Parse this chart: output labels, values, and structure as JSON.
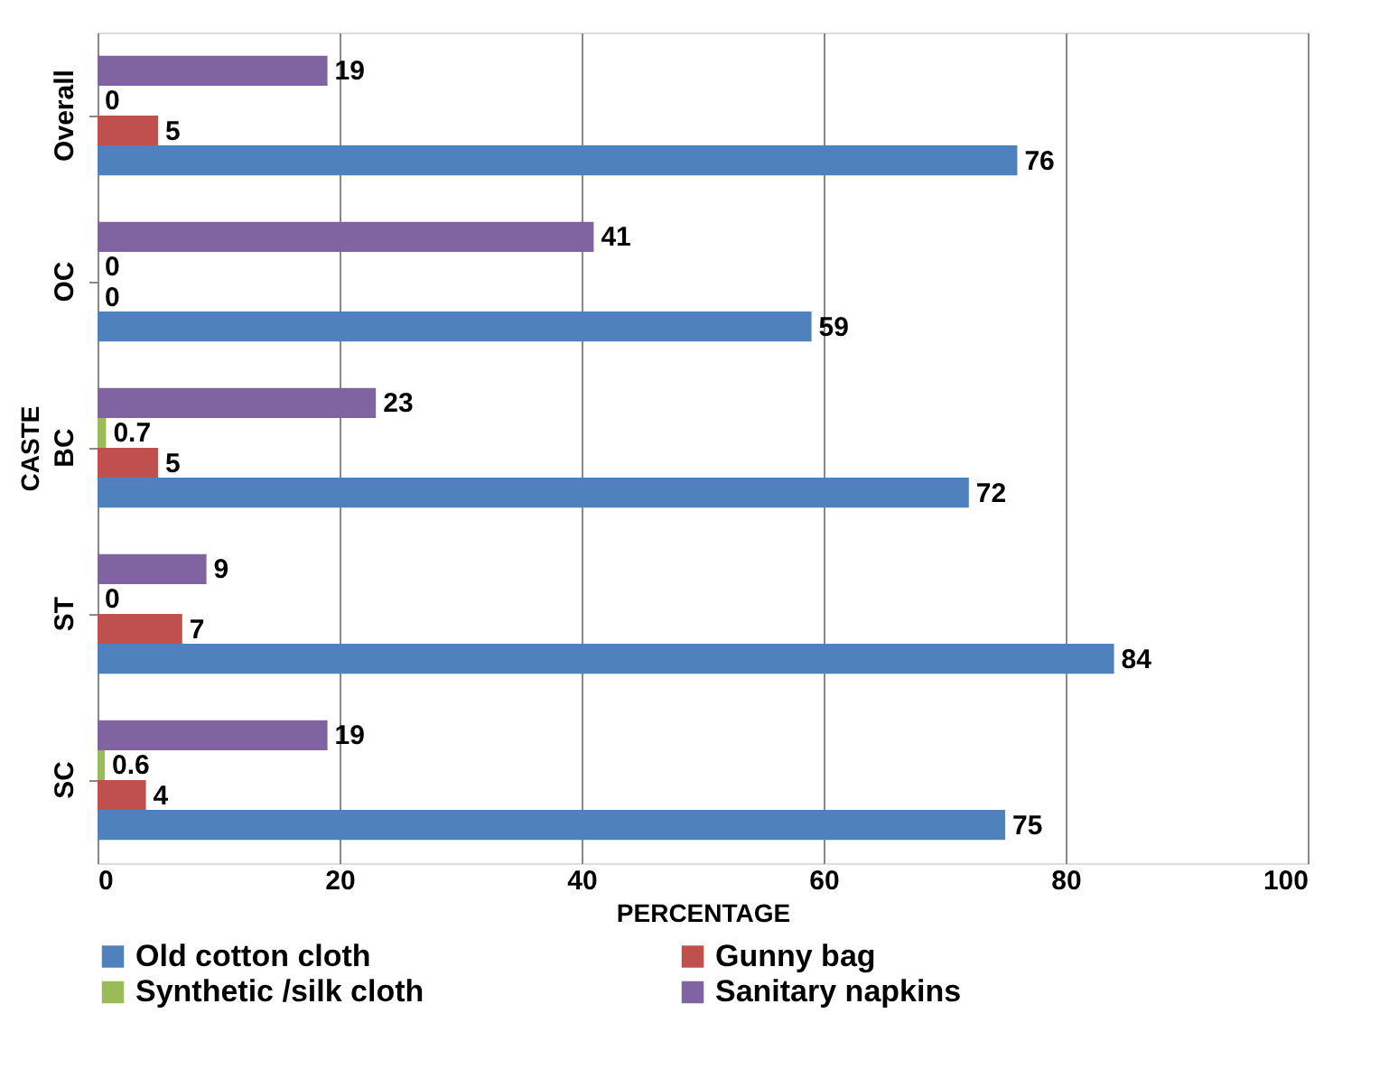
{
  "chart_data": {
    "type": "bar",
    "orientation": "horizontal",
    "xlabel": "PERCENTAGE",
    "ylabel": "CASTE",
    "categories": [
      "Overall",
      "OC",
      "BC",
      "ST",
      "SC"
    ],
    "series": [
      {
        "name": "Old cotton cloth",
        "color": "#4f81bd",
        "values": [
          76,
          59,
          72,
          84,
          75
        ]
      },
      {
        "name": "Gunny bag",
        "color": "#c0504d",
        "values": [
          5,
          0,
          5,
          7,
          4
        ]
      },
      {
        "name": "Synthetic /silk cloth",
        "color": "#9bbb59",
        "values": [
          0,
          0,
          0.7,
          0,
          0.6
        ]
      },
      {
        "name": "Sanitary napkins",
        "color": "#8064a2",
        "values": [
          19,
          41,
          23,
          9,
          19
        ]
      }
    ],
    "xlim": [
      0,
      100
    ],
    "xticks": [
      0,
      20,
      40,
      60,
      80,
      100
    ],
    "grid": "x",
    "legend": "bottom",
    "data_labels": true
  }
}
